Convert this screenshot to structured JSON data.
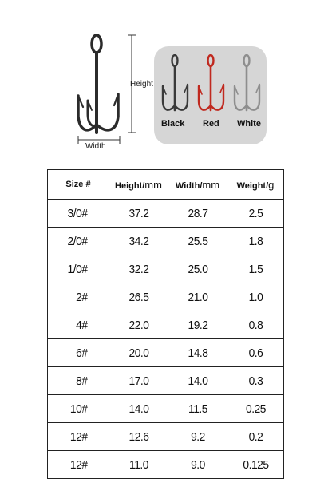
{
  "diagram": {
    "height_label": "Height",
    "width_label": "Width",
    "variants": [
      {
        "label": "Black",
        "color": "#3a3a3a"
      },
      {
        "label": "Red",
        "color": "#c0291f"
      },
      {
        "label": "White",
        "color": "#9a9a9a"
      }
    ],
    "panel_color": "#d6d6d6"
  },
  "table": {
    "headers": [
      {
        "label": "Size #",
        "unit": ""
      },
      {
        "label": "Height/",
        "unit": "mm"
      },
      {
        "label": "Width/",
        "unit": "mm"
      },
      {
        "label": "Weight/",
        "unit": "g"
      }
    ],
    "rows": [
      [
        "3/0#",
        "37.2",
        "28.7",
        "2.5"
      ],
      [
        "2/0#",
        "34.2",
        "25.5",
        "1.8"
      ],
      [
        "1/0#",
        "32.2",
        "25.0",
        "1.5"
      ],
      [
        "2#",
        "26.5",
        "21.0",
        "1.0"
      ],
      [
        "4#",
        "22.0",
        "19.2",
        "0.8"
      ],
      [
        "6#",
        "20.0",
        "14.8",
        "0.6"
      ],
      [
        "8#",
        "17.0",
        "14.0",
        "0.3"
      ],
      [
        "10#",
        "14.0",
        "11.5",
        "0.25"
      ],
      [
        "12#",
        "12.6",
        "9.2",
        "0.2"
      ],
      [
        "12#",
        "11.0",
        "9.0",
        "0.125"
      ]
    ]
  }
}
